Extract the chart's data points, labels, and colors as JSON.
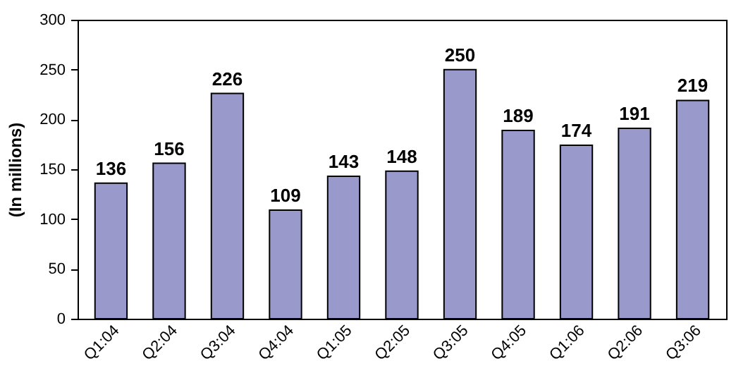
{
  "chart_data": {
    "type": "bar",
    "ylabel": "(In millions)",
    "categories": [
      "Q1:04",
      "Q2:04",
      "Q3:04",
      "Q4:04",
      "Q1:05",
      "Q2:05",
      "Q3:05",
      "Q4:05",
      "Q1:06",
      "Q2:06",
      "Q3:06"
    ],
    "values": [
      136,
      156,
      226,
      109,
      143,
      148,
      250,
      189,
      174,
      191,
      219
    ],
    "color": "#9999cc",
    "ylim": [
      0,
      300
    ],
    "yticks": [
      0,
      50,
      100,
      150,
      200,
      250,
      300
    ],
    "data_labels": true
  }
}
